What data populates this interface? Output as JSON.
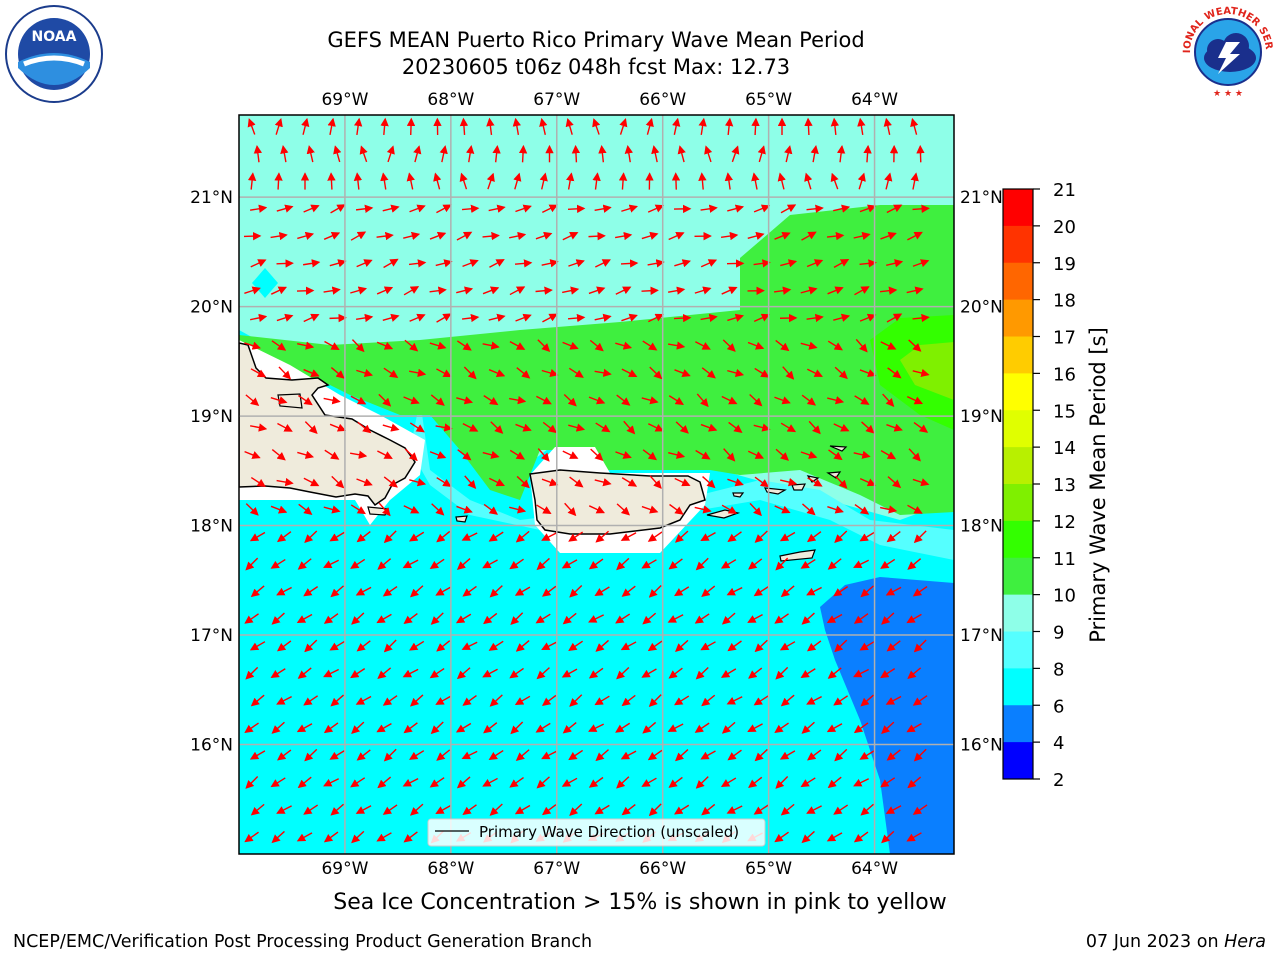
{
  "title": {
    "line1": "GEFS MEAN Puerto Rico Primary Wave Mean Period",
    "line2": "20230605 t06z 048h fcst   Max: 12.73"
  },
  "logos": {
    "left": {
      "name": "noaa-logo",
      "text": "NOAA",
      "ring_text": "NATIONAL OCEANIC AND ATMOSPHERIC ADMINISTRATION · U.S. DEPARTMENT OF COMMERCE"
    },
    "right": {
      "name": "nws-logo",
      "ring_text": "NATIONAL WEATHER SERVICE"
    }
  },
  "map": {
    "lon_ticks": [
      "69°W",
      "68°W",
      "67°W",
      "66°W",
      "65°W",
      "64°W"
    ],
    "lat_ticks": [
      "21°N",
      "20°N",
      "19°N",
      "18°N",
      "17°N",
      "16°N"
    ],
    "lon_values": [
      -69,
      -68,
      -67,
      -66,
      -65,
      -64
    ],
    "lat_values": [
      21,
      20,
      19,
      18,
      17,
      16
    ],
    "extent": {
      "lon_min": -70,
      "lon_max": -63.25,
      "lat_min": 15,
      "lat_max": 21.75
    },
    "grid": true,
    "vector_color": "#ff0000",
    "legend_label": "Primary Wave Direction (unscaled)",
    "land_color": "#efebdc"
  },
  "colorbar": {
    "label": "Primary Wave Mean Period [s]",
    "ticks": [
      "21",
      "20",
      "19",
      "18",
      "17",
      "16",
      "15",
      "14",
      "13",
      "12",
      "11",
      "10",
      "9",
      "8",
      "6",
      "4",
      "2"
    ],
    "levels_colors": [
      {
        "from": 2,
        "to": 4,
        "color": "#0000ff"
      },
      {
        "from": 4,
        "to": 6,
        "color": "#0a7fff"
      },
      {
        "from": 6,
        "to": 8,
        "color": "#00ffff"
      },
      {
        "from": 8,
        "to": 9,
        "color": "#55ffff"
      },
      {
        "from": 9,
        "to": 10,
        "color": "#8effe8"
      },
      {
        "from": 10,
        "to": 11,
        "color": "#3fef3f"
      },
      {
        "from": 11,
        "to": 12,
        "color": "#33ff00"
      },
      {
        "from": 12,
        "to": 13,
        "color": "#7ff000"
      },
      {
        "from": 13,
        "to": 14,
        "color": "#b8f000"
      },
      {
        "from": 14,
        "to": 15,
        "color": "#e0ff00"
      },
      {
        "from": 15,
        "to": 16,
        "color": "#ffff00"
      },
      {
        "from": 16,
        "to": 17,
        "color": "#ffcc00"
      },
      {
        "from": 17,
        "to": 18,
        "color": "#ff9900"
      },
      {
        "from": 18,
        "to": 19,
        "color": "#ff6600"
      },
      {
        "from": 19,
        "to": 20,
        "color": "#ff3300"
      },
      {
        "from": 20,
        "to": 21,
        "color": "#ff0000"
      }
    ]
  },
  "note": "Sea Ice Concentration > 15% is shown in pink to yellow",
  "footer": {
    "left": "NCEP/EMC/Verification Post Processing Product Generation Branch",
    "right_date": "07 Jun 2023 on",
    "right_host": "Hera"
  }
}
